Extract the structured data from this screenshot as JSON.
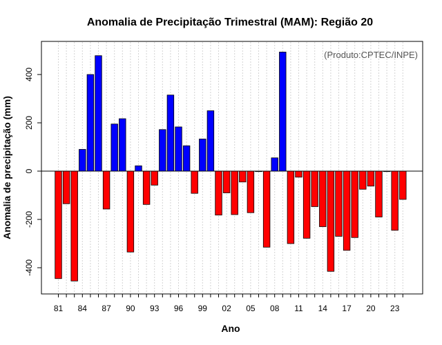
{
  "chart_data": {
    "type": "bar",
    "title": "Anomalia de Precipitação Trimestral (MAM): Região 20",
    "xlabel": "Ano",
    "ylabel": "Anomalia de precipitação (mm)",
    "credit": "(Produto:CPTEC/INPE)",
    "categories": [
      "81",
      "82",
      "83",
      "84",
      "85",
      "86",
      "87",
      "88",
      "89",
      "90",
      "91",
      "92",
      "93",
      "94",
      "95",
      "96",
      "97",
      "98",
      "99",
      "00",
      "01",
      "02",
      "03",
      "04",
      "05",
      "06",
      "07",
      "08",
      "09",
      "10",
      "11",
      "12",
      "13",
      "14",
      "15",
      "16",
      "17",
      "18",
      "19",
      "20",
      "21",
      "22",
      "23",
      "24"
    ],
    "values": [
      -445,
      -135,
      -455,
      90,
      400,
      478,
      -157,
      195,
      217,
      -335,
      22,
      -138,
      -58,
      172,
      315,
      183,
      105,
      -92,
      133,
      250,
      -182,
      -90,
      -180,
      -45,
      -172,
      -2,
      -315,
      55,
      493,
      -300,
      -25,
      -278,
      -147,
      -230,
      -415,
      -270,
      -328,
      -275,
      -75,
      -62,
      -190,
      -2,
      -245,
      -117
    ],
    "x_tick_labels": [
      "81",
      "84",
      "87",
      "90",
      "93",
      "96",
      "99",
      "02",
      "05",
      "08",
      "11",
      "14",
      "17",
      "20",
      "23"
    ],
    "y_ticks": [
      -400,
      -200,
      0,
      200,
      400
    ],
    "ylim": [
      -500,
      540
    ],
    "positive_color": "#0000ff",
    "negative_color": "#ff0000",
    "grid": true
  }
}
